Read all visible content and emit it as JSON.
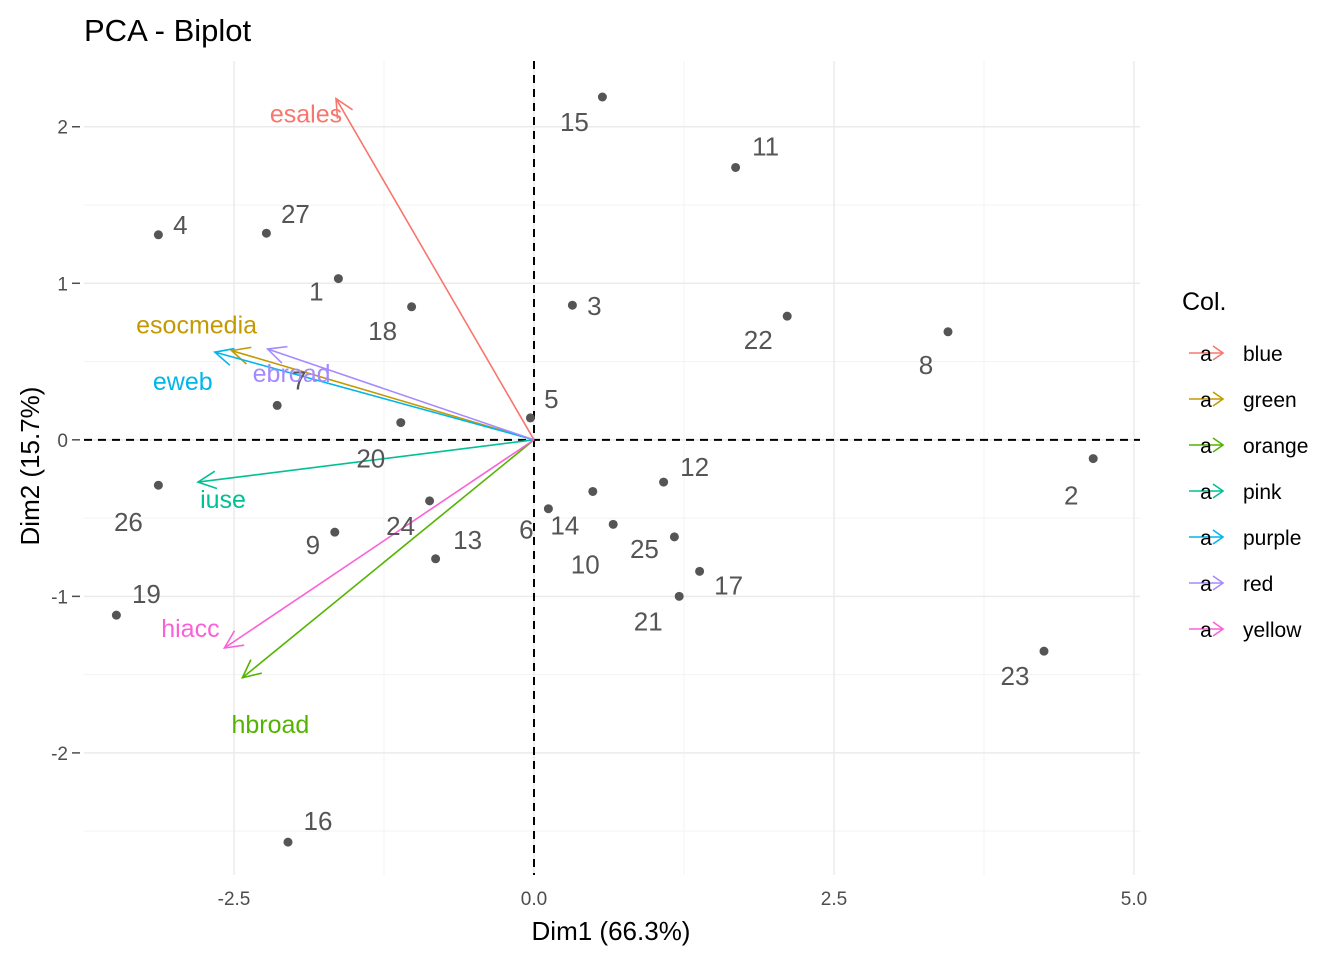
{
  "chart_data": {
    "type": "scatter",
    "title": "PCA - Biplot",
    "xlabel": "Dim1 (66.3%)",
    "ylabel": "Dim2 (15.7%)",
    "xlim": [
      -3.75,
      5.05
    ],
    "ylim": [
      -2.78,
      2.42
    ],
    "x_ticks": [
      -2.5,
      0.0,
      2.5,
      5.0
    ],
    "x_tick_labels": [
      "-2.5",
      "0.0",
      "2.5",
      "5.0"
    ],
    "y_ticks": [
      -2,
      -1,
      0,
      1,
      2
    ],
    "y_tick_labels": [
      "-2",
      "-1",
      "0",
      "1",
      "2"
    ],
    "grid": true,
    "reference_lines": {
      "x": 0,
      "y": 0,
      "style": "dashed"
    },
    "individuals": [
      {
        "label": "1",
        "x": -1.63,
        "y": 1.03
      },
      {
        "label": "2",
        "x": 4.66,
        "y": -0.12
      },
      {
        "label": "3",
        "x": 0.32,
        "y": 0.86
      },
      {
        "label": "4",
        "x": -3.13,
        "y": 1.31
      },
      {
        "label": "5",
        "x": -0.03,
        "y": 0.14
      },
      {
        "label": "6",
        "x": 0.12,
        "y": -0.44
      },
      {
        "label": "7",
        "x": -2.14,
        "y": 0.22
      },
      {
        "label": "8",
        "x": 3.45,
        "y": 0.69
      },
      {
        "label": "9",
        "x": -1.66,
        "y": -0.59
      },
      {
        "label": "10",
        "x": 0.66,
        "y": -0.54
      },
      {
        "label": "11",
        "x": 1.68,
        "y": 1.74
      },
      {
        "label": "12",
        "x": 1.08,
        "y": -0.27
      },
      {
        "label": "13",
        "x": -0.82,
        "y": -0.76
      },
      {
        "label": "14",
        "x": 0.49,
        "y": -0.33
      },
      {
        "label": "15",
        "x": 0.57,
        "y": 2.19
      },
      {
        "label": "16",
        "x": -2.05,
        "y": -2.57
      },
      {
        "label": "17",
        "x": 1.38,
        "y": -0.84
      },
      {
        "label": "18",
        "x": -1.02,
        "y": 0.85
      },
      {
        "label": "19",
        "x": -3.48,
        "y": -1.12
      },
      {
        "label": "20",
        "x": -1.11,
        "y": 0.11
      },
      {
        "label": "21",
        "x": 1.21,
        "y": -1.0
      },
      {
        "label": "22",
        "x": 2.11,
        "y": 0.79
      },
      {
        "label": "23",
        "x": 4.25,
        "y": -1.35
      },
      {
        "label": "24",
        "x": -0.87,
        "y": -0.39
      },
      {
        "label": "25",
        "x": 1.17,
        "y": -0.62
      },
      {
        "label": "26",
        "x": -3.13,
        "y": -0.29
      },
      {
        "label": "27",
        "x": -2.23,
        "y": 1.32
      }
    ],
    "variables": [
      {
        "label": "esales",
        "x": -1.65,
        "y": 2.18,
        "color": "#F8766D"
      },
      {
        "label": "esocmedia",
        "x": -2.52,
        "y": 0.57,
        "color": "#C49A00"
      },
      {
        "label": "hbroad",
        "x": -2.43,
        "y": -1.52,
        "color": "#53B400"
      },
      {
        "label": "iuse",
        "x": -2.8,
        "y": -0.27,
        "color": "#00C094"
      },
      {
        "label": "eweb",
        "x": -2.66,
        "y": 0.56,
        "color": "#00B6EB"
      },
      {
        "label": "ebroad",
        "x": -2.22,
        "y": 0.58,
        "color": "#A58AFF"
      },
      {
        "label": "hiacc",
        "x": -2.58,
        "y": -1.33,
        "color": "#FB61D7"
      }
    ],
    "legend": {
      "title": "Col.",
      "position": "right",
      "glyph": "a",
      "items": [
        {
          "label": "blue",
          "color": "#F8766D"
        },
        {
          "label": "green",
          "color": "#C49A00"
        },
        {
          "label": "orange",
          "color": "#53B400"
        },
        {
          "label": "pink",
          "color": "#00C094"
        },
        {
          "label": "purple",
          "color": "#00B6EB"
        },
        {
          "label": "red",
          "color": "#A58AFF"
        },
        {
          "label": "yellow",
          "color": "#FB61D7"
        }
      ]
    },
    "colors": {
      "point": "#555555",
      "point_label": "#555555",
      "grid_major": "#ebebeb",
      "grid_minor": "#f3f3f3",
      "reference_line": "#000000"
    }
  }
}
